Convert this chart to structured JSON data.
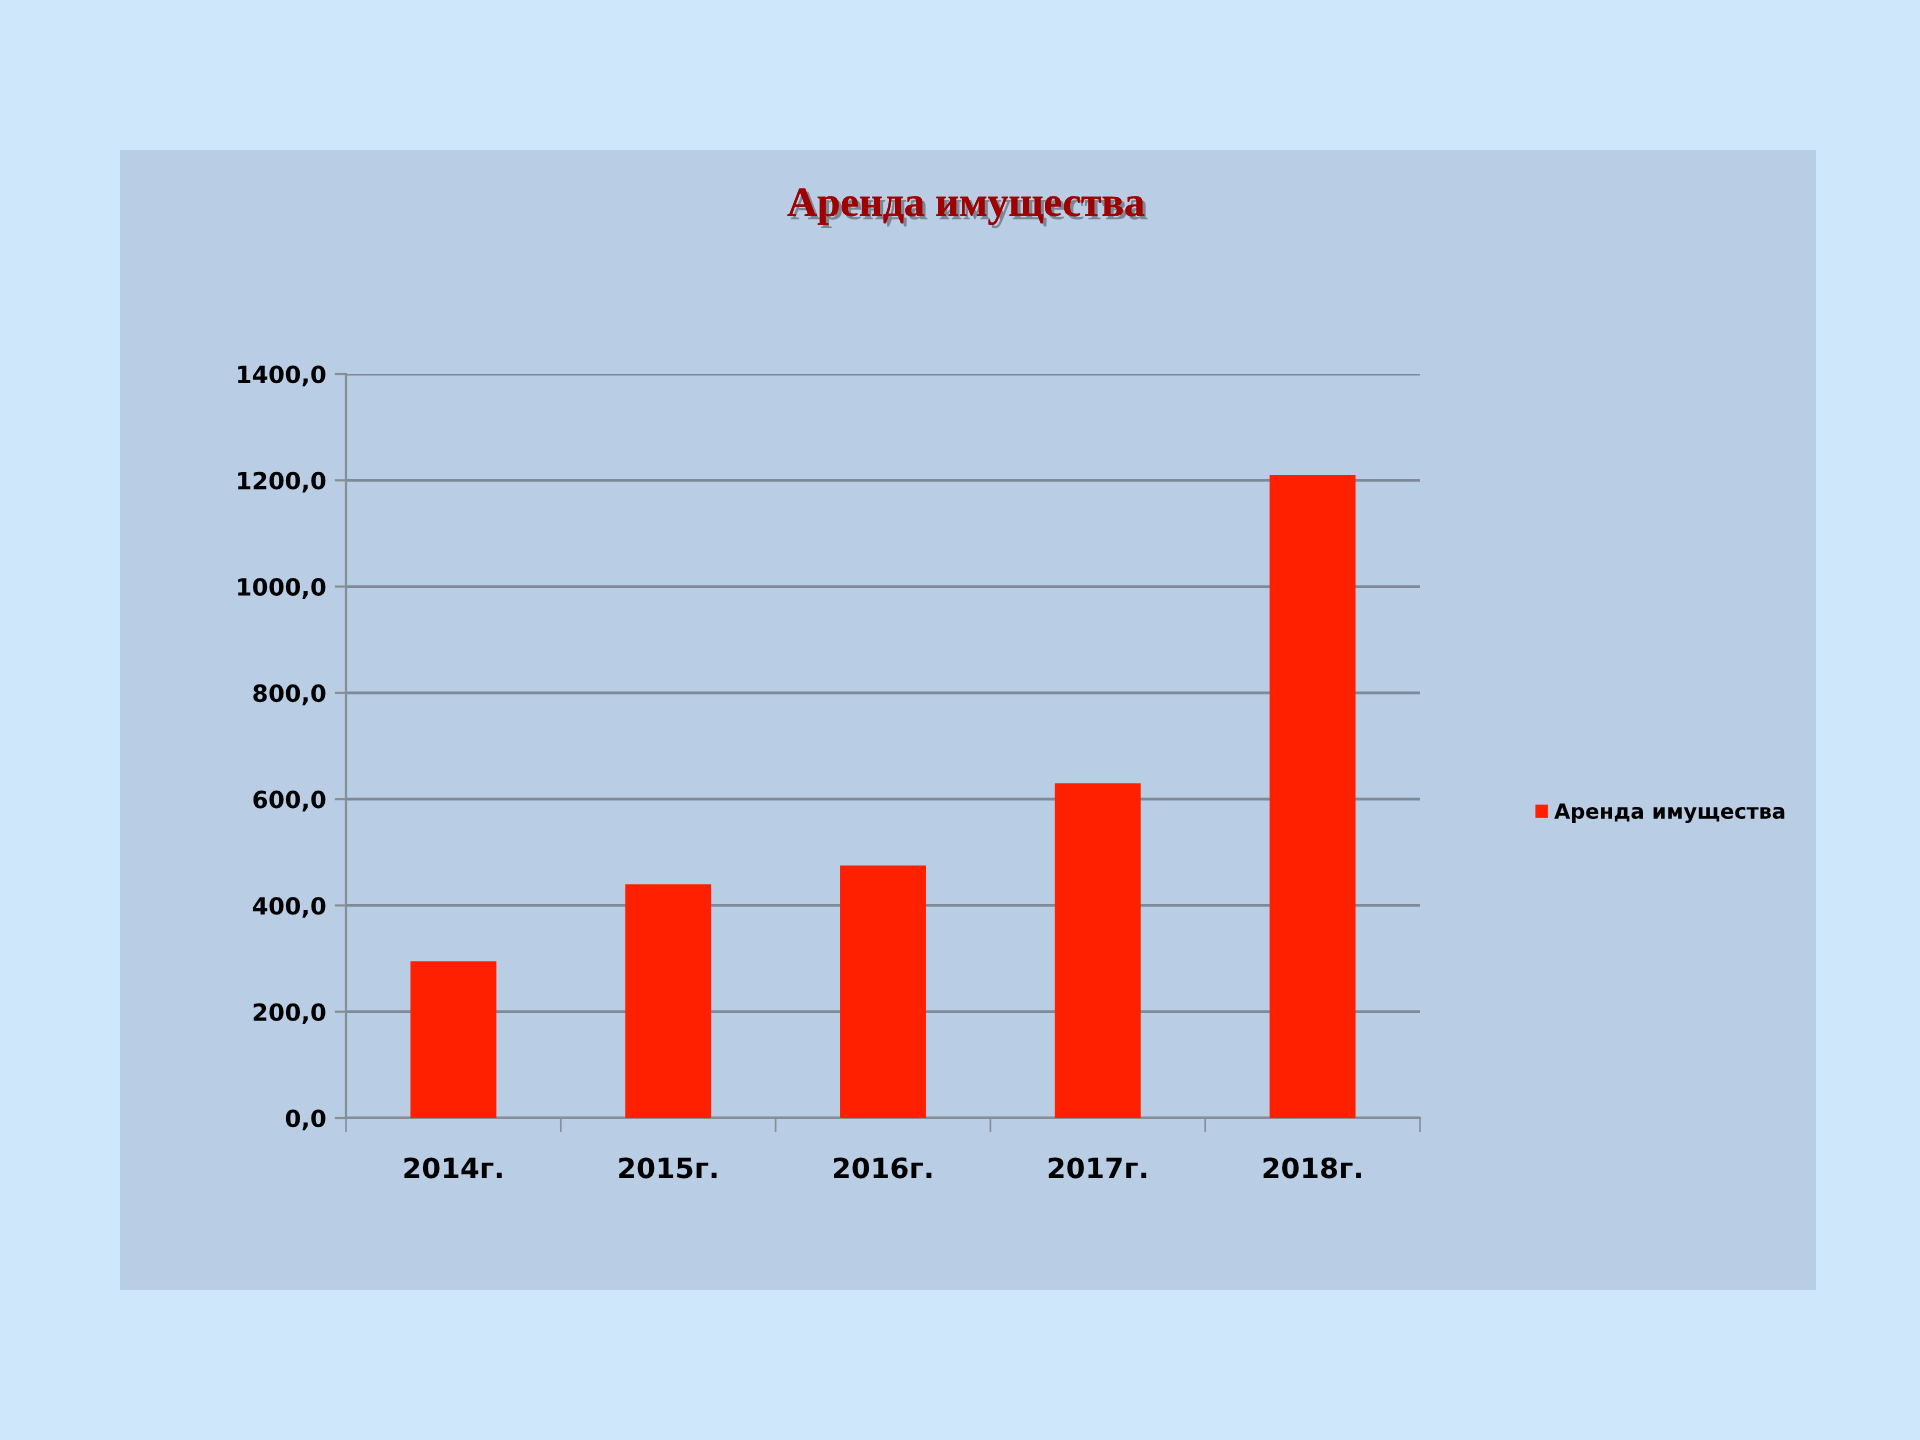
{
  "chart_data": {
    "type": "bar",
    "title": "Аренда имущества",
    "categories": [
      "2014г.",
      "2015г.",
      "2016г.",
      "2017г.",
      "2018г."
    ],
    "series": [
      {
        "name": "Аренда имущества",
        "color": "#ff2000",
        "values": [
          295,
          440,
          475,
          630,
          1210
        ]
      }
    ],
    "ylim": [
      0,
      1400
    ],
    "yticks": [
      {
        "value": 0,
        "label": "0,0"
      },
      {
        "value": 200,
        "label": "200,0"
      },
      {
        "value": 400,
        "label": "400,0"
      },
      {
        "value": 600,
        "label": "600,0"
      },
      {
        "value": 800,
        "label": "800,0"
      },
      {
        "value": 1000,
        "label": "1000,0"
      },
      {
        "value": 1200,
        "label": "1200,0"
      },
      {
        "value": 1400,
        "label": "1400,0"
      }
    ],
    "grid": "y",
    "legend": "right"
  }
}
